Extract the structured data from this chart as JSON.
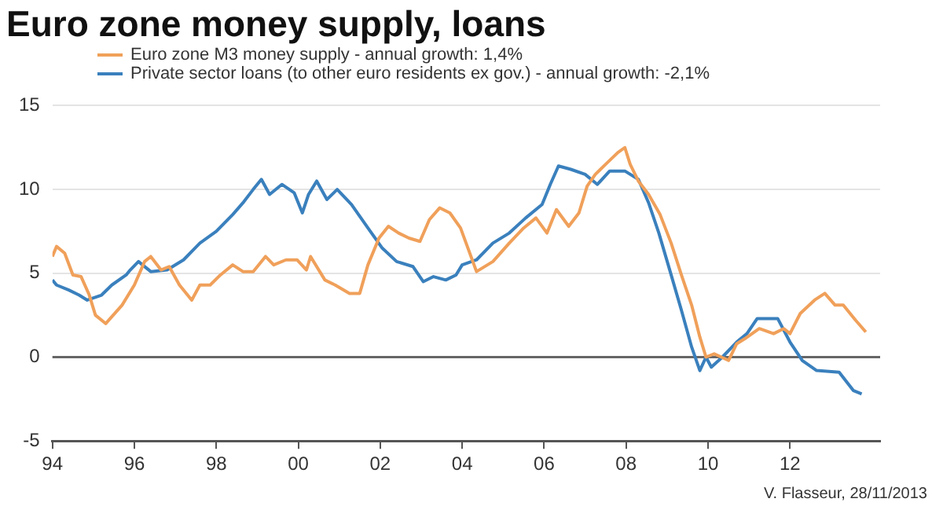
{
  "chart_data": {
    "type": "line",
    "title": "Euro zone money supply, loans",
    "legend": "top left",
    "grid": "y",
    "marker": "none",
    "line_style": "solid",
    "xlim": [
      1994,
      2014.2
    ],
    "xticks": [
      {
        "value": 1994,
        "label": "94"
      },
      {
        "value": 1996,
        "label": "96"
      },
      {
        "value": 1998,
        "label": "98"
      },
      {
        "value": 2000,
        "label": "00"
      },
      {
        "value": 2002,
        "label": "02"
      },
      {
        "value": 2004,
        "label": "04"
      },
      {
        "value": 2006,
        "label": "06"
      },
      {
        "value": 2008,
        "label": "08"
      },
      {
        "value": 2010,
        "label": "10"
      },
      {
        "value": 2012,
        "label": "12"
      }
    ],
    "ylim": [
      -5,
      15
    ],
    "yticks": [
      -5,
      0,
      5,
      10,
      15
    ],
    "ref_lines": [
      {
        "axis": "y",
        "value": 0,
        "color": "#666666"
      }
    ],
    "annotations": [
      "V. Flasseur, 28/11/2013"
    ],
    "series": [
      {
        "name": "Euro zone M3 money supply - annual growth: 1,4%",
        "color": "#f0a05a",
        "x": [
          1994.0,
          1994.1,
          1994.3,
          1994.5,
          1994.7,
          1994.9,
          1995.05,
          1995.3,
          1995.7,
          1996.0,
          1996.25,
          1996.4,
          1996.65,
          1996.85,
          1997.1,
          1997.4,
          1997.6,
          1997.85,
          1998.1,
          1998.4,
          1998.65,
          1998.9,
          1999.2,
          1999.4,
          1999.7,
          1999.97,
          2000.2,
          2000.3,
          2000.65,
          2000.9,
          2001.25,
          2001.5,
          2001.7,
          2001.97,
          2002.2,
          2002.45,
          2002.7,
          2002.97,
          2003.2,
          2003.45,
          2003.7,
          2003.96,
          2004.35,
          2004.75,
          2005.15,
          2005.5,
          2005.8,
          2006.07,
          2006.3,
          2006.6,
          2006.85,
          2007.05,
          2007.25,
          2007.5,
          2007.8,
          2007.97,
          2008.1,
          2008.3,
          2008.55,
          2008.83,
          2009.1,
          2009.35,
          2009.6,
          2009.8,
          2009.95,
          2010.15,
          2010.5,
          2010.7,
          2010.9,
          2011.25,
          2011.6,
          2011.85,
          2012.0,
          2012.25,
          2012.6,
          2012.85,
          2013.1,
          2013.3,
          2013.6,
          2013.85
        ],
        "values": [
          6.0,
          6.6,
          6.2,
          4.9,
          4.8,
          3.7,
          2.5,
          2.0,
          3.1,
          4.3,
          5.7,
          6.0,
          5.2,
          5.4,
          4.3,
          3.4,
          4.3,
          4.3,
          4.9,
          5.5,
          5.1,
          5.1,
          6.0,
          5.5,
          5.8,
          5.8,
          5.2,
          6.0,
          4.6,
          4.3,
          3.8,
          3.8,
          5.5,
          7.1,
          7.8,
          7.4,
          7.1,
          6.9,
          8.2,
          8.9,
          8.6,
          7.7,
          5.1,
          5.7,
          6.8,
          7.7,
          8.3,
          7.4,
          8.8,
          7.8,
          8.6,
          10.2,
          10.9,
          11.5,
          12.2,
          12.5,
          11.5,
          10.5,
          9.7,
          8.5,
          6.8,
          4.9,
          3.1,
          1.2,
          0.0,
          0.2,
          -0.2,
          0.8,
          1.1,
          1.7,
          1.4,
          1.7,
          1.4,
          2.6,
          3.4,
          3.8,
          3.1,
          3.1,
          2.2,
          1.5
        ]
      },
      {
        "name": "Private sector loans (to other euro residents ex gov.) - annual growth: -2,1%",
        "color": "#3a80bd",
        "x": [
          1994.0,
          1994.1,
          1994.4,
          1994.65,
          1994.85,
          1995.2,
          1995.45,
          1995.8,
          1995.9,
          1996.1,
          1996.4,
          1996.8,
          1997.2,
          1997.6,
          1998.0,
          1998.4,
          1998.65,
          1998.9,
          1999.1,
          1999.3,
          1999.6,
          1999.9,
          2000.1,
          2000.25,
          2000.45,
          2000.7,
          2000.95,
          2001.3,
          2001.7,
          2002.05,
          2002.4,
          2002.8,
          2003.05,
          2003.3,
          2003.6,
          2003.85,
          2004.0,
          2004.35,
          2004.75,
          2005.15,
          2005.55,
          2005.95,
          2006.15,
          2006.35,
          2006.65,
          2007.0,
          2007.3,
          2007.6,
          2007.97,
          2008.3,
          2008.55,
          2008.8,
          2009.1,
          2009.35,
          2009.6,
          2009.8,
          2009.95,
          2010.08,
          2010.35,
          2010.7,
          2010.95,
          2011.2,
          2011.7,
          2012.0,
          2012.3,
          2012.65,
          2013.2,
          2013.55,
          2013.75
        ],
        "values": [
          4.6,
          4.3,
          4.0,
          3.7,
          3.4,
          3.7,
          4.3,
          4.9,
          5.2,
          5.7,
          5.1,
          5.2,
          5.8,
          6.8,
          7.5,
          8.5,
          9.2,
          10.0,
          10.6,
          9.7,
          10.3,
          9.8,
          8.6,
          9.7,
          10.5,
          9.4,
          10.0,
          9.1,
          7.7,
          6.5,
          5.7,
          5.4,
          4.5,
          4.8,
          4.6,
          4.9,
          5.5,
          5.8,
          6.8,
          7.4,
          8.3,
          9.1,
          10.3,
          11.4,
          11.2,
          10.9,
          10.3,
          11.1,
          11.1,
          10.6,
          9.2,
          7.4,
          4.9,
          2.8,
          0.6,
          -0.8,
          0.0,
          -0.6,
          0.0,
          0.9,
          1.4,
          2.3,
          2.3,
          0.9,
          -0.2,
          -0.8,
          -0.9,
          -2.0,
          -2.2
        ]
      }
    ]
  }
}
